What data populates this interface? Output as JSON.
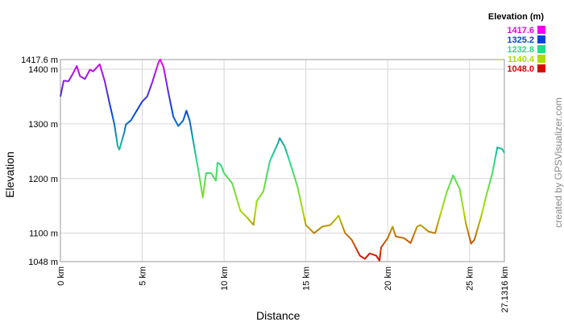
{
  "chart_data": {
    "type": "line",
    "y_label": "Elevation",
    "x_label": "Distance",
    "credit": "created by GPSVisualizer.com",
    "xlim": [
      0,
      27.1316
    ],
    "ylim": [
      1048,
      1417.6
    ],
    "xticks": [
      {
        "value": 0,
        "label": "0 km"
      },
      {
        "value": 5,
        "label": "5 km"
      },
      {
        "value": 10,
        "label": "10 km"
      },
      {
        "value": 15,
        "label": "15 km"
      },
      {
        "value": 20,
        "label": "20 km"
      },
      {
        "value": 25,
        "label": "25 km"
      },
      {
        "value": 27.1316,
        "label": "27.1316 km"
      }
    ],
    "yticks": [
      {
        "value": 1048,
        "label": "1048 m"
      },
      {
        "value": 1100,
        "label": "1100 m"
      },
      {
        "value": 1200,
        "label": "1200 m"
      },
      {
        "value": 1300,
        "label": "1300 m"
      },
      {
        "value": 1400,
        "label": "1400 m"
      },
      {
        "value": 1417.6,
        "label": "1417.6 m"
      }
    ],
    "grid": true,
    "legend": {
      "title": "Elevation (m)",
      "values": [
        1417.6,
        1325.2,
        1232.8,
        1140.4,
        1048.0
      ],
      "value_labels": [
        "1417.6",
        "1325.2",
        "1232.8",
        "1140.4",
        "1048.0"
      ],
      "colors": [
        "#ee00ee",
        "#0044dd",
        "#22dd88",
        "#aadd00",
        "#dd0000"
      ]
    },
    "x": [
      0,
      0.2,
      0.5,
      0.8,
      1.0,
      1.2,
      1.5,
      1.8,
      2.0,
      2.4,
      2.7,
      3.0,
      3.3,
      3.5,
      3.6,
      3.9,
      4.0,
      4.3,
      4.5,
      5.0,
      5.3,
      5.6,
      6.0,
      6.1,
      6.3,
      6.6,
      6.9,
      7.2,
      7.5,
      7.7,
      7.9,
      8.2,
      8.5,
      8.7,
      8.9,
      9.2,
      9.5,
      9.6,
      9.8,
      10.0,
      10.5,
      11.0,
      11.4,
      11.8,
      12.0,
      12.4,
      12.8,
      13.3,
      13.4,
      13.7,
      14.0,
      14.5,
      15.0,
      15.5,
      16.0,
      16.5,
      17.0,
      17.4,
      17.8,
      18.3,
      18.6,
      18.9,
      19.3,
      19.5,
      19.6,
      20.0,
      20.3,
      20.5,
      21.0,
      21.4,
      21.8,
      22.0,
      22.5,
      22.9,
      23.2,
      23.6,
      24.0,
      24.4,
      24.8,
      25.1,
      25.3,
      25.7,
      26.0,
      26.4,
      26.7,
      27.0,
      27.1316
    ],
    "series": [
      {
        "values": [
          1350,
          1379,
          1378,
          1394,
          1406,
          1387,
          1382,
          1399,
          1396,
          1409,
          1379,
          1338,
          1299,
          1259,
          1253,
          1284,
          1299,
          1306,
          1316,
          1341,
          1350,
          1375,
          1413,
          1417.6,
          1404,
          1357,
          1313,
          1296,
          1306,
          1324,
          1306,
          1254,
          1203,
          1165,
          1210,
          1210,
          1196,
          1229,
          1225,
          1210,
          1191,
          1141,
          1129,
          1115,
          1159,
          1176,
          1232,
          1265,
          1274,
          1259,
          1232,
          1184,
          1115,
          1100,
          1112,
          1115,
          1132,
          1100,
          1088,
          1059,
          1053,
          1063,
          1059,
          1050,
          1074,
          1091,
          1112,
          1094,
          1091,
          1082,
          1112,
          1115,
          1103,
          1100,
          1132,
          1174,
          1206,
          1181,
          1115,
          1081,
          1088,
          1129,
          1166,
          1210,
          1257,
          1254,
          1247
        ]
      }
    ]
  }
}
